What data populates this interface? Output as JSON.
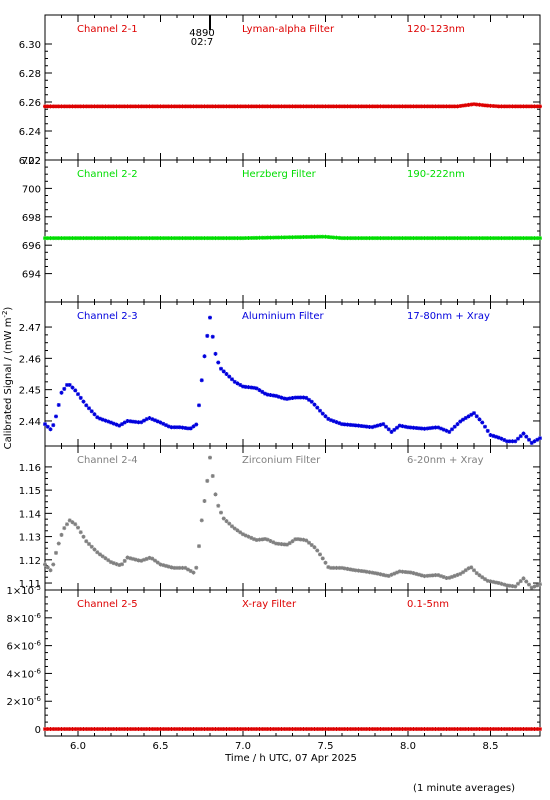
{
  "chart_data": {
    "type": "scatter",
    "x_label": "Time / h UTC, 07 Apr 2025",
    "y_label": "Calibrated Signal / (mW m",
    "y_label_sup": "-2",
    "y_label_close": ")",
    "footnote": "(1 minute averages)",
    "xlim": [
      5.8,
      8.8
    ],
    "x_ticks": [
      "6.0",
      "6.5",
      "7.0",
      "7.5",
      "8.0",
      "8.5"
    ],
    "x_tick_values": [
      6.0,
      6.5,
      7.0,
      7.5,
      8.0,
      8.5
    ],
    "marker_annotation": {
      "x": 6.8,
      "line1": "4890",
      "line2": "02:7"
    },
    "panels": [
      {
        "name": "Channel 2-1",
        "filter": "Lyman-alpha Filter",
        "band": "120-123nm",
        "color": "#dd0000",
        "ylim": [
          6.22,
          6.32
        ],
        "y_ticks": [
          "6.22",
          "6.24",
          "6.26",
          "6.28",
          "6.30"
        ],
        "y_tick_values": [
          6.22,
          6.24,
          6.26,
          6.28,
          6.3
        ],
        "series": [
          [
            5.8,
            6.257
          ],
          [
            6.5,
            6.257
          ],
          [
            7.0,
            6.257
          ],
          [
            7.5,
            6.257
          ],
          [
            8.0,
            6.257
          ],
          [
            8.3,
            6.257
          ],
          [
            8.4,
            6.2585
          ],
          [
            8.48,
            6.2575
          ],
          [
            8.55,
            6.257
          ],
          [
            8.8,
            6.257
          ]
        ]
      },
      {
        "name": "Channel 2-2",
        "filter": "Herzberg Filter",
        "band": "190-222nm",
        "color": "#00dd00",
        "ylim": [
          692,
          702
        ],
        "y_ticks": [
          "694",
          "696",
          "698",
          "700",
          "702"
        ],
        "y_tick_values": [
          694,
          696,
          698,
          700,
          702
        ],
        "series": [
          [
            5.8,
            696.5
          ],
          [
            6.5,
            696.5
          ],
          [
            7.0,
            696.5
          ],
          [
            7.49,
            696.6
          ],
          [
            7.6,
            696.5
          ],
          [
            8.0,
            696.5
          ],
          [
            8.8,
            696.5
          ]
        ]
      },
      {
        "name": "Channel 2-3",
        "filter": "Aluminium Filter",
        "band": "17-80nm + Xray",
        "color": "#0000dd",
        "ylim": [
          2.432,
          2.478
        ],
        "y_ticks": [
          "2.44",
          "2.45",
          "2.46",
          "2.47"
        ],
        "y_tick_values": [
          2.44,
          2.45,
          2.46,
          2.47
        ],
        "series": [
          [
            5.8,
            2.439
          ],
          [
            5.84,
            2.437
          ],
          [
            5.87,
            2.442
          ],
          [
            5.9,
            2.449
          ],
          [
            5.94,
            2.452
          ],
          [
            5.98,
            2.45
          ],
          [
            6.05,
            2.445
          ],
          [
            6.12,
            2.441
          ],
          [
            6.2,
            2.4395
          ],
          [
            6.25,
            2.4385
          ],
          [
            6.3,
            2.44
          ],
          [
            6.38,
            2.4395
          ],
          [
            6.43,
            2.441
          ],
          [
            6.5,
            2.4395
          ],
          [
            6.56,
            2.438
          ],
          [
            6.62,
            2.438
          ],
          [
            6.68,
            2.4375
          ],
          [
            6.72,
            2.439
          ],
          [
            6.74,
            2.448
          ],
          [
            6.76,
            2.458
          ],
          [
            6.78,
            2.466
          ],
          [
            6.8,
            2.473
          ],
          [
            6.83,
            2.462
          ],
          [
            6.86,
            2.457
          ],
          [
            6.9,
            2.455
          ],
          [
            6.95,
            2.4525
          ],
          [
            7.0,
            2.451
          ],
          [
            7.08,
            2.4505
          ],
          [
            7.14,
            2.4485
          ],
          [
            7.2,
            2.448
          ],
          [
            7.26,
            2.447
          ],
          [
            7.32,
            2.4475
          ],
          [
            7.38,
            2.4475
          ],
          [
            7.42,
            2.446
          ],
          [
            7.48,
            2.4425
          ],
          [
            7.52,
            2.4405
          ],
          [
            7.6,
            2.439
          ],
          [
            7.7,
            2.4385
          ],
          [
            7.78,
            2.438
          ],
          [
            7.85,
            2.439
          ],
          [
            7.9,
            2.4365
          ],
          [
            7.95,
            2.4385
          ],
          [
            8.0,
            2.438
          ],
          [
            8.1,
            2.4375
          ],
          [
            8.18,
            2.438
          ],
          [
            8.25,
            2.4365
          ],
          [
            8.32,
            2.44
          ],
          [
            8.4,
            2.4425
          ],
          [
            8.45,
            2.4395
          ],
          [
            8.5,
            2.4355
          ],
          [
            8.56,
            2.4345
          ],
          [
            8.6,
            2.4335
          ],
          [
            8.65,
            2.4335
          ],
          [
            8.7,
            2.436
          ],
          [
            8.75,
            2.433
          ],
          [
            8.8,
            2.4345
          ]
        ]
      },
      {
        "name": "Channel 2-4",
        "filter": "Zirconium Filter",
        "band": "6-20nm + Xray",
        "color": "#808080",
        "ylim": [
          1.107,
          1.169
        ],
        "y_ticks": [
          "1.11",
          "1.12",
          "1.13",
          "1.14",
          "1.15",
          "1.16"
        ],
        "y_tick_values": [
          1.11,
          1.12,
          1.13,
          1.14,
          1.15,
          1.16
        ],
        "series": [
          [
            5.8,
            1.118
          ],
          [
            5.84,
            1.115
          ],
          [
            5.87,
            1.124
          ],
          [
            5.91,
            1.133
          ],
          [
            5.95,
            1.137
          ],
          [
            5.99,
            1.135
          ],
          [
            6.05,
            1.128
          ],
          [
            6.12,
            1.123
          ],
          [
            6.2,
            1.119
          ],
          [
            6.26,
            1.1175
          ],
          [
            6.3,
            1.121
          ],
          [
            6.38,
            1.1195
          ],
          [
            6.44,
            1.121
          ],
          [
            6.5,
            1.118
          ],
          [
            6.58,
            1.1165
          ],
          [
            6.65,
            1.1165
          ],
          [
            6.7,
            1.1145
          ],
          [
            6.72,
            1.117
          ],
          [
            6.75,
            1.137
          ],
          [
            6.78,
            1.152
          ],
          [
            6.8,
            1.164
          ],
          [
            6.84,
            1.145
          ],
          [
            6.88,
            1.138
          ],
          [
            6.94,
            1.134
          ],
          [
            7.0,
            1.131
          ],
          [
            7.08,
            1.1285
          ],
          [
            7.14,
            1.129
          ],
          [
            7.2,
            1.127
          ],
          [
            7.27,
            1.1265
          ],
          [
            7.32,
            1.129
          ],
          [
            7.38,
            1.1285
          ],
          [
            7.44,
            1.125
          ],
          [
            7.48,
            1.121
          ],
          [
            7.52,
            1.1165
          ],
          [
            7.6,
            1.1165
          ],
          [
            7.68,
            1.1155
          ],
          [
            7.74,
            1.115
          ],
          [
            7.82,
            1.114
          ],
          [
            7.88,
            1.113
          ],
          [
            7.95,
            1.115
          ],
          [
            8.02,
            1.1145
          ],
          [
            8.1,
            1.113
          ],
          [
            8.18,
            1.1135
          ],
          [
            8.24,
            1.112
          ],
          [
            8.32,
            1.114
          ],
          [
            8.38,
            1.117
          ],
          [
            8.42,
            1.114
          ],
          [
            8.48,
            1.111
          ],
          [
            8.55,
            1.11
          ],
          [
            8.6,
            1.109
          ],
          [
            8.65,
            1.1085
          ],
          [
            8.7,
            1.112
          ],
          [
            8.75,
            1.108
          ],
          [
            8.8,
            1.1095
          ]
        ]
      },
      {
        "name": "Channel 2-5",
        "filter": "X-ray Filter",
        "band": "0.1-5nm",
        "color": "#dd0000",
        "ylim": [
          -0.05,
          1.0
        ],
        "y_ticks": [
          "0",
          "2×10",
          "4×10",
          "6×10",
          "8×10",
          "1×10"
        ],
        "y_tick_exps": [
          "",
          "-6",
          "-6",
          "-6",
          "-6",
          "-5"
        ],
        "y_tick_values": [
          0,
          0.2,
          0.4,
          0.6,
          0.8,
          1.0
        ],
        "series": [
          [
            5.8,
            0.0
          ],
          [
            8.8,
            0.0
          ]
        ]
      }
    ]
  }
}
